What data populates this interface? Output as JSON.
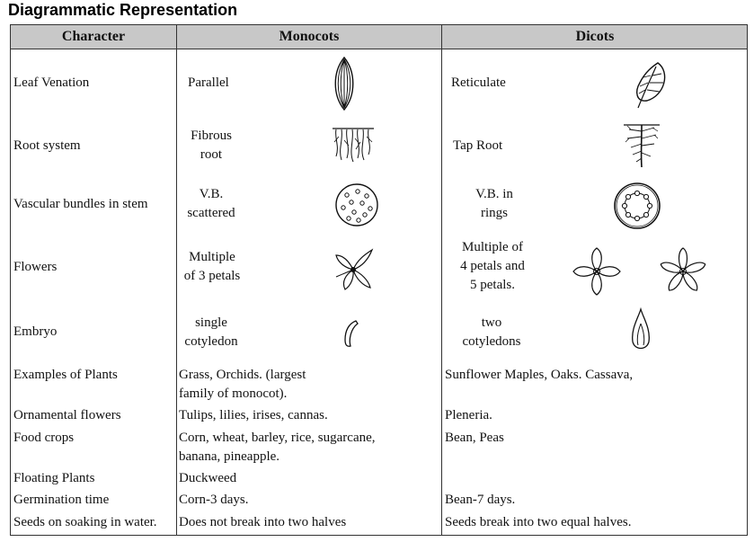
{
  "page_title": "Diagrammatic Representation",
  "headers": {
    "character": "Character",
    "monocots": "Monocots",
    "dicots": "Dicots"
  },
  "rows": [
    {
      "character": "Leaf Venation",
      "mono_line1": "Parallel",
      "dicot_line1": "Reticulate",
      "mono_icon": "parallel-venation-leaf-icon",
      "dicot_icon": "reticulate-venation-leaf-icon"
    },
    {
      "character": "Root system",
      "mono_line1": "Fibrous",
      "mono_line2": "root",
      "dicot_line1": "Tap Root",
      "mono_icon": "fibrous-root-icon",
      "dicot_icon": "tap-root-icon"
    },
    {
      "character": "Vascular bundles in stem",
      "mono_line1": "V.B.",
      "mono_line2": "scattered",
      "dicot_line1": "V.B. in",
      "dicot_line2": "rings",
      "mono_icon": "scattered-vascular-bundles-icon",
      "dicot_icon": "ringed-vascular-bundles-icon"
    },
    {
      "character": "Flowers",
      "mono_line1": "Multiple",
      "mono_line2": "of 3 petals",
      "dicot_line1": "Multiple of",
      "dicot_line2": "4 petals and",
      "dicot_line3": "5 petals.",
      "mono_icon": "three-petal-flower-icon",
      "dicot_icon": "four-petal-flower-icon"
    },
    {
      "character": "Embryo",
      "mono_line1": "single",
      "mono_line2": "cotyledon",
      "dicot_line1": "two",
      "dicot_line2": "cotyledons",
      "mono_icon": "single-cotyledon-icon",
      "dicot_icon": "two-cotyledons-icon"
    },
    {
      "character": "Examples of Plants",
      "mono_line1": "Grass, Orchids. (largest",
      "mono_line2": "family of monocot).",
      "dicot_line1": "Sunflower Maples, Oaks. Cassava,"
    },
    {
      "character": "Ornamental flowers",
      "mono_line1": "Tulips, lilies, irises, cannas.",
      "dicot_line1": "Pleneria."
    },
    {
      "character": "Food crops",
      "mono_line1": "Corn, wheat, barley, rice, sugarcane,",
      "mono_line2": "banana, pineapple.",
      "dicot_line1": "Bean, Peas"
    },
    {
      "character": "Floating Plants",
      "mono_line1": "Duckweed",
      "dicot_line1": ""
    },
    {
      "character": "Germination time",
      "mono_line1": "Corn-3 days.",
      "dicot_line1": "Bean-7 days."
    },
    {
      "character": "Seeds on soaking in water.",
      "mono_line1": "Does not break into two halves",
      "dicot_line1": "Seeds break into two equal halves."
    }
  ]
}
